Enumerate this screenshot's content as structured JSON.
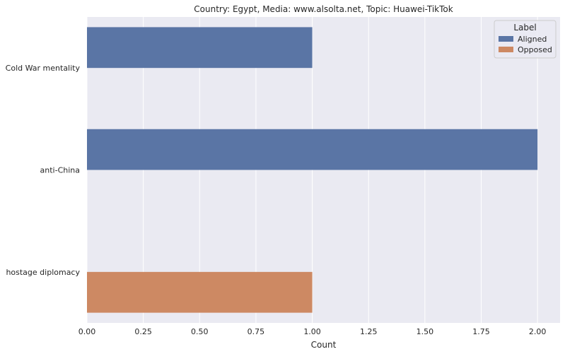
{
  "chart_data": {
    "type": "bar",
    "orientation": "horizontal",
    "title": "Country: Egypt, Media: www.alsolta.net, Topic: Huawei-TikTok",
    "xlabel": "Count",
    "ylabel": "",
    "categories": [
      "Cold War mentality",
      "anti-China",
      "hostage diplomacy"
    ],
    "series": [
      {
        "name": "Aligned",
        "color": "#5a75a5",
        "values": [
          1,
          2,
          0
        ]
      },
      {
        "name": "Opposed",
        "color": "#cd8963",
        "values": [
          0,
          0,
          1
        ]
      }
    ],
    "xlim": [
      0,
      2.1
    ],
    "xticks": [
      "0.00",
      "0.25",
      "0.50",
      "0.75",
      "1.00",
      "1.25",
      "1.50",
      "1.75",
      "2.00"
    ],
    "grid": true,
    "legend": {
      "title": "Label",
      "position": "top-right"
    },
    "background": "#eaeaf2"
  }
}
